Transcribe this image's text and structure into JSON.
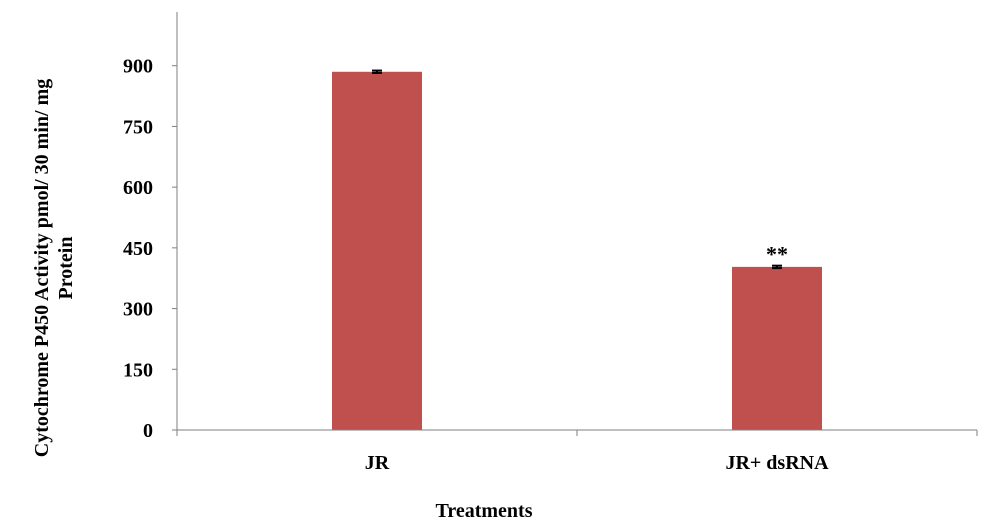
{
  "chart_data": {
    "type": "bar",
    "categories": [
      "JR",
      "JR+ dsRNA"
    ],
    "values": [
      885,
      403
    ],
    "errors": [
      3,
      3
    ],
    "annotations": [
      "",
      "**"
    ],
    "xlabel": "Treatments",
    "ylabel_line1": "Cytochrome P450 Activity pmol/ 30 min/ mg",
    "ylabel_line2": "Protein",
    "ylim": [
      0,
      1050
    ],
    "yticks": [
      0,
      150,
      300,
      450,
      600,
      750,
      900
    ],
    "bar_color": "#c0504d",
    "grid": false
  }
}
